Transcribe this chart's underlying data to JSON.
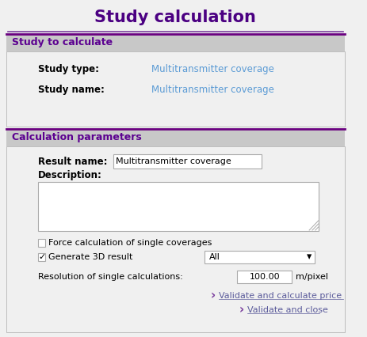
{
  "title": "Study calculation",
  "title_color": "#4b0082",
  "title_fontsize": 15,
  "bg_color": "#f0f0f0",
  "white": "#ffffff",
  "section1_header": "Study to calculate",
  "section2_header": "Calculation parameters",
  "header_bg": "#c8c8c8",
  "header_text_color": "#5b0090",
  "header_border_color": "#6a0080",
  "label_color": "#000000",
  "value_color": "#5b9bd5",
  "field_border": "#aaaaaa",
  "study_type_label": "Study type:",
  "study_type_value": "Multitransmitter coverage",
  "study_name_label": "Study name:",
  "study_name_value": "Multitransmitter coverage",
  "result_name_label": "Result name:",
  "result_name_value": "Multitransmitter coverage",
  "description_label": "Description:",
  "checkbox1_label": "Force calculation of single coverages",
  "checkbox2_label": "Generate 3D result",
  "dropdown_value": "All",
  "resolution_label": "Resolution of single calculations:",
  "resolution_value": "100.00",
  "resolution_unit": "m/pixel",
  "link1": "Validate and calculate price",
  "link2": "Validate and close",
  "link_color": "#5b5b9b",
  "link_arrow_color": "#7b3f9e",
  "separator_color": "#7b3f9e"
}
